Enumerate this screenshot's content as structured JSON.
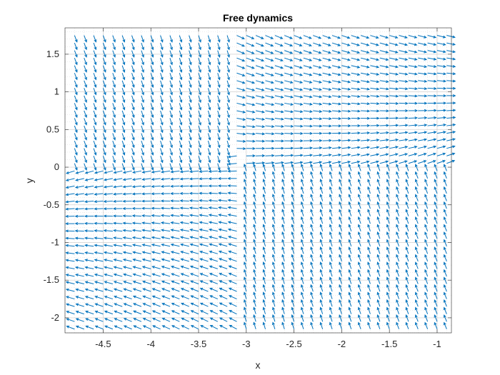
{
  "chart_data": {
    "type": "quiver",
    "title": "Free dynamics",
    "xlabel": "x",
    "ylabel": "y",
    "xlim": [
      -4.9,
      -0.85
    ],
    "ylim": [
      -2.2,
      1.85
    ],
    "xticks": [
      -4.5,
      -4,
      -3.5,
      -3,
      -2.5,
      -2,
      -1.5,
      -1
    ],
    "xtick_labels": [
      "-4.5",
      "-4",
      "-3.5",
      "-3",
      "-2.5",
      "-2",
      "-1.5",
      "-1"
    ],
    "yticks": [
      -2,
      -1.5,
      -1,
      -0.5,
      0,
      0.5,
      1,
      1.5
    ],
    "ytick_labels": [
      "-2",
      "-1.5",
      "-1",
      "-0.5",
      "0",
      "0.5",
      "1",
      "1.5"
    ],
    "grid": true,
    "grid_minor": true,
    "grid_x": {
      "start": -4.9,
      "step": 0.1,
      "count": 41
    },
    "grid_y": {
      "start": -2.2,
      "step": 0.1,
      "count": 41
    },
    "arrow_spacing": {
      "x_step": 0.1,
      "y_step": 0.1
    },
    "series_color": "#0072BD",
    "field_description": "Vector field of free dynamics around attractor near (-3.1, 0); flow converges toward the separatrix line",
    "field": {
      "center": [
        -3.1,
        0.0
      ],
      "rotation": 0.35,
      "scale": 0.09
    }
  }
}
